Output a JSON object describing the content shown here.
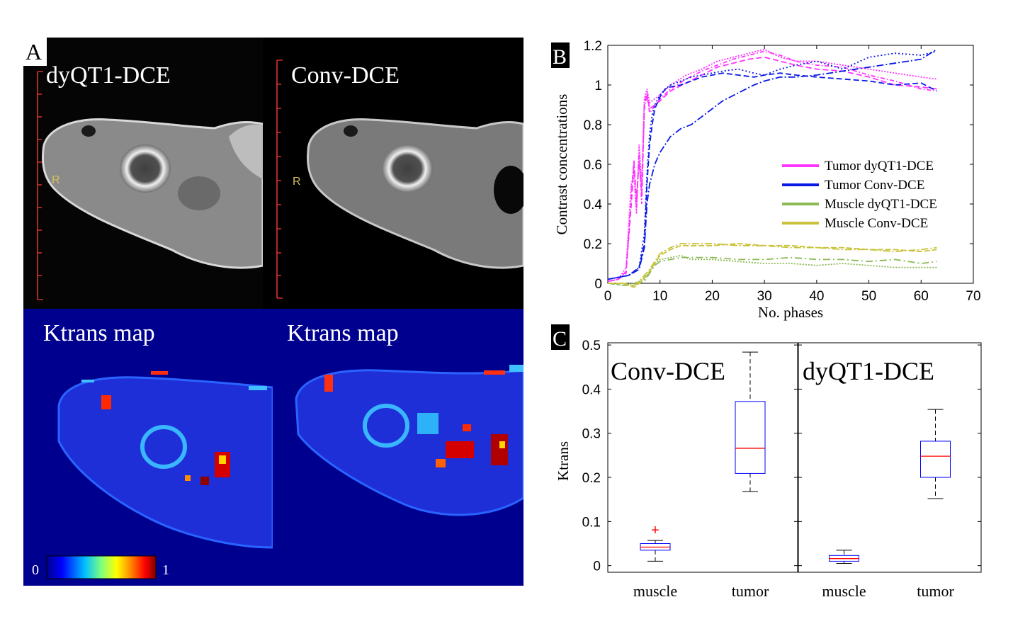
{
  "panel_a": {
    "letter": "A",
    "mri_labels": [
      "dyQT1-DCE",
      "Conv-DCE"
    ],
    "orientation_marker": "R",
    "ktrans_labels": [
      "Ktrans map",
      "Ktrans map"
    ],
    "colorbar": {
      "min_label": "0",
      "max_label": "1",
      "stops": [
        "#00008f",
        "#0000ff",
        "#00bfff",
        "#7fff7f",
        "#ffff00",
        "#ff7f00",
        "#ff0000",
        "#7f0000"
      ]
    }
  },
  "chart_data": [
    {
      "type": "line",
      "panel": "B",
      "xlabel": "No. phases",
      "ylabel": "Contrast concentrations",
      "xlim": [
        0,
        70
      ],
      "ylim": [
        0,
        1.2
      ],
      "xticks": [
        "0",
        "10",
        "20",
        "30",
        "40",
        "50",
        "60",
        "70"
      ],
      "yticks": [
        "0",
        "0.2",
        "0.4",
        "0.6",
        "0.8",
        "1",
        "1.2"
      ],
      "legend": [
        {
          "name": "Tumor dyQT1-DCE",
          "color": "#ff33ff"
        },
        {
          "name": "Tumor Conv-DCE",
          "color": "#0a1ae6"
        },
        {
          "name": "Muscle dyQT1-DCE",
          "color": "#8cb955"
        },
        {
          "name": "Muscle Conv-DCE",
          "color": "#c9c23a"
        }
      ],
      "legend_position": "center-right",
      "series": [
        {
          "name": "Tumor dyQT1-DCE",
          "color": "#ff33ff",
          "dash": "6,3,1.5,3",
          "x": [
            0,
            2,
            3.5,
            4.5,
            5,
            5.5,
            6,
            6.5,
            7,
            7.5,
            8,
            10,
            12,
            15,
            18,
            21,
            24,
            27,
            30,
            33,
            36,
            40,
            45,
            50,
            55,
            60,
            63
          ],
          "y": [
            0.01,
            0.02,
            0.05,
            0.45,
            0.62,
            0.38,
            0.66,
            0.4,
            0.88,
            0.95,
            0.86,
            0.93,
            0.98,
            1.03,
            1.07,
            1.1,
            1.13,
            1.15,
            1.17,
            1.15,
            1.12,
            1.1,
            1.09,
            1.05,
            1.02,
            0.98,
            0.97
          ]
        },
        {
          "name": "Tumor dyQT1-DCE",
          "color": "#ff33ff",
          "dash": "2,2",
          "x": [
            0,
            2,
            3.5,
            4.5,
            5,
            5.5,
            6,
            6.5,
            7,
            7.5,
            8,
            10,
            12,
            15,
            18,
            21,
            24,
            27,
            30,
            33,
            36,
            40,
            45,
            50,
            55,
            60,
            63
          ],
          "y": [
            0.01,
            0.02,
            0.08,
            0.5,
            0.55,
            0.35,
            0.7,
            0.5,
            0.93,
            0.98,
            0.91,
            0.95,
            1.0,
            1.05,
            1.08,
            1.12,
            1.14,
            1.16,
            1.18,
            1.14,
            1.12,
            1.12,
            1.1,
            1.08,
            1.06,
            1.04,
            1.03
          ]
        },
        {
          "name": "Tumor dyQT1-DCE",
          "color": "#ff33ff",
          "dash": "8,4",
          "x": [
            0,
            2,
            3.5,
            4.5,
            5,
            5.5,
            6,
            6.5,
            7,
            7.5,
            8,
            10,
            12,
            15,
            18,
            21,
            24,
            27,
            30,
            33,
            36,
            40,
            45,
            50,
            55,
            60,
            63
          ],
          "y": [
            0.01,
            0.02,
            0.06,
            0.4,
            0.6,
            0.42,
            0.62,
            0.45,
            0.9,
            0.96,
            0.88,
            0.92,
            0.97,
            1.01,
            1.05,
            1.09,
            1.11,
            1.13,
            1.14,
            1.12,
            1.1,
            1.08,
            1.07,
            1.04,
            1.0,
            0.99,
            0.98
          ]
        },
        {
          "name": "Tumor Conv-DCE",
          "color": "#0a1ae6",
          "dash": "8,4",
          "x": [
            0,
            2,
            4,
            6,
            7,
            7.5,
            8,
            8.5,
            9,
            10,
            11,
            12,
            14,
            16,
            18,
            20,
            22,
            25,
            28,
            30,
            33,
            36,
            40,
            45,
            50,
            55,
            60,
            63
          ],
          "y": [
            0.02,
            0.03,
            0.04,
            0.08,
            0.2,
            0.5,
            0.7,
            0.8,
            0.88,
            0.94,
            0.98,
            0.99,
            1.0,
            1.02,
            1.04,
            1.05,
            1.06,
            1.05,
            1.04,
            1.05,
            1.06,
            1.05,
            1.04,
            1.03,
            1.02,
            1.0,
            1.01,
            0.97
          ]
        },
        {
          "name": "Tumor Conv-DCE",
          "color": "#0a1ae6",
          "dash": "2,3",
          "x": [
            0,
            2,
            4,
            6,
            7,
            7.5,
            8,
            8.5,
            9,
            10,
            11,
            12,
            14,
            16,
            18,
            20,
            22,
            25,
            28,
            30,
            33,
            36,
            40,
            45,
            50,
            55,
            60,
            63
          ],
          "y": [
            0.02,
            0.03,
            0.04,
            0.08,
            0.25,
            0.55,
            0.75,
            0.85,
            0.9,
            0.95,
            0.98,
            1.0,
            1.02,
            1.04,
            1.05,
            1.06,
            1.07,
            1.08,
            1.06,
            1.05,
            1.08,
            1.1,
            1.12,
            1.08,
            1.14,
            1.16,
            1.15,
            1.17
          ]
        },
        {
          "name": "Tumor Conv-DCE",
          "color": "#0a1ae6",
          "dash": "10,3,2,3",
          "x": [
            0,
            2,
            4,
            6,
            7,
            7.5,
            8,
            8.5,
            9,
            10,
            11,
            12,
            14,
            16,
            18,
            20,
            22,
            25,
            28,
            30,
            33,
            36,
            40,
            45,
            50,
            55,
            60,
            63
          ],
          "y": [
            0.02,
            0.03,
            0.04,
            0.07,
            0.18,
            0.4,
            0.5,
            0.55,
            0.6,
            0.66,
            0.7,
            0.74,
            0.78,
            0.8,
            0.84,
            0.88,
            0.92,
            0.96,
            1.0,
            1.02,
            1.04,
            1.04,
            1.05,
            1.07,
            1.09,
            1.11,
            1.13,
            1.18
          ]
        },
        {
          "name": "Muscle dyQT1-DCE",
          "color": "#8cb955",
          "dash": "10,4,2,4",
          "x": [
            0,
            3,
            5,
            7,
            8,
            9,
            10,
            12,
            14,
            16,
            20,
            25,
            30,
            35,
            40,
            45,
            50,
            55,
            60,
            63
          ],
          "y": [
            0.0,
            -0.01,
            -0.01,
            0.01,
            0.05,
            0.09,
            0.11,
            0.12,
            0.13,
            0.13,
            0.13,
            0.12,
            0.12,
            0.13,
            0.12,
            0.12,
            0.11,
            0.12,
            0.1,
            0.11
          ]
        },
        {
          "name": "Muscle dyQT1-DCE",
          "color": "#8cb955",
          "dash": "2,2",
          "x": [
            0,
            3,
            5,
            7,
            8,
            9,
            10,
            12,
            14,
            16,
            20,
            25,
            30,
            35,
            40,
            45,
            50,
            55,
            60,
            63
          ],
          "y": [
            0.0,
            -0.01,
            0.0,
            0.02,
            0.06,
            0.1,
            0.12,
            0.13,
            0.14,
            0.12,
            0.12,
            0.11,
            0.1,
            0.1,
            0.09,
            0.1,
            0.09,
            0.08,
            0.08,
            0.08
          ]
        },
        {
          "name": "Muscle Conv-DCE",
          "color": "#c9c23a",
          "dash": "8,3",
          "x": [
            0,
            3,
            5,
            6,
            7,
            8,
            9,
            10,
            12,
            14,
            16,
            20,
            25,
            30,
            35,
            40,
            45,
            50,
            55,
            60,
            63
          ],
          "y": [
            0.0,
            0.0,
            -0.02,
            0.0,
            0.03,
            0.06,
            0.1,
            0.14,
            0.17,
            0.19,
            0.19,
            0.19,
            0.2,
            0.19,
            0.19,
            0.18,
            0.18,
            0.17,
            0.17,
            0.16,
            0.17
          ]
        },
        {
          "name": "Muscle Conv-DCE",
          "color": "#c9c23a",
          "dash": "10,3,2,3",
          "x": [
            0,
            3,
            5,
            6,
            7,
            8,
            9,
            10,
            12,
            14,
            16,
            20,
            25,
            30,
            35,
            40,
            45,
            50,
            55,
            60,
            63
          ],
          "y": [
            0.0,
            0.0,
            -0.01,
            0.01,
            0.04,
            0.07,
            0.11,
            0.15,
            0.18,
            0.2,
            0.2,
            0.2,
            0.19,
            0.19,
            0.18,
            0.18,
            0.17,
            0.17,
            0.16,
            0.17,
            0.18
          ]
        }
      ]
    },
    {
      "type": "box",
      "panel": "C",
      "ylabel": "Ktrans",
      "ylim": [
        -0.015,
        0.505
      ],
      "yticks": [
        "0",
        "0.1",
        "0.2",
        "0.3",
        "0.4",
        "0.5"
      ],
      "subplots": [
        {
          "title": "Conv-DCE",
          "categories": [
            "muscle",
            "tumor"
          ],
          "boxes": [
            {
              "category": "muscle",
              "min": 0.01,
              "q1": 0.035,
              "median": 0.042,
              "q3": 0.05,
              "max": 0.057,
              "outliers": [
                0.081
              ]
            },
            {
              "category": "tumor",
              "min": 0.168,
              "q1": 0.209,
              "median": 0.266,
              "q3": 0.372,
              "max": 0.484,
              "outliers": []
            }
          ]
        },
        {
          "title": "dyQT1-DCE",
          "categories": [
            "muscle",
            "tumor"
          ],
          "boxes": [
            {
              "category": "muscle",
              "min": 0.005,
              "q1": 0.01,
              "median": 0.016,
              "q3": 0.023,
              "max": 0.035,
              "outliers": []
            },
            {
              "category": "tumor",
              "min": 0.152,
              "q1": 0.2,
              "median": 0.248,
              "q3": 0.282,
              "max": 0.354,
              "outliers": []
            }
          ]
        }
      ]
    }
  ]
}
